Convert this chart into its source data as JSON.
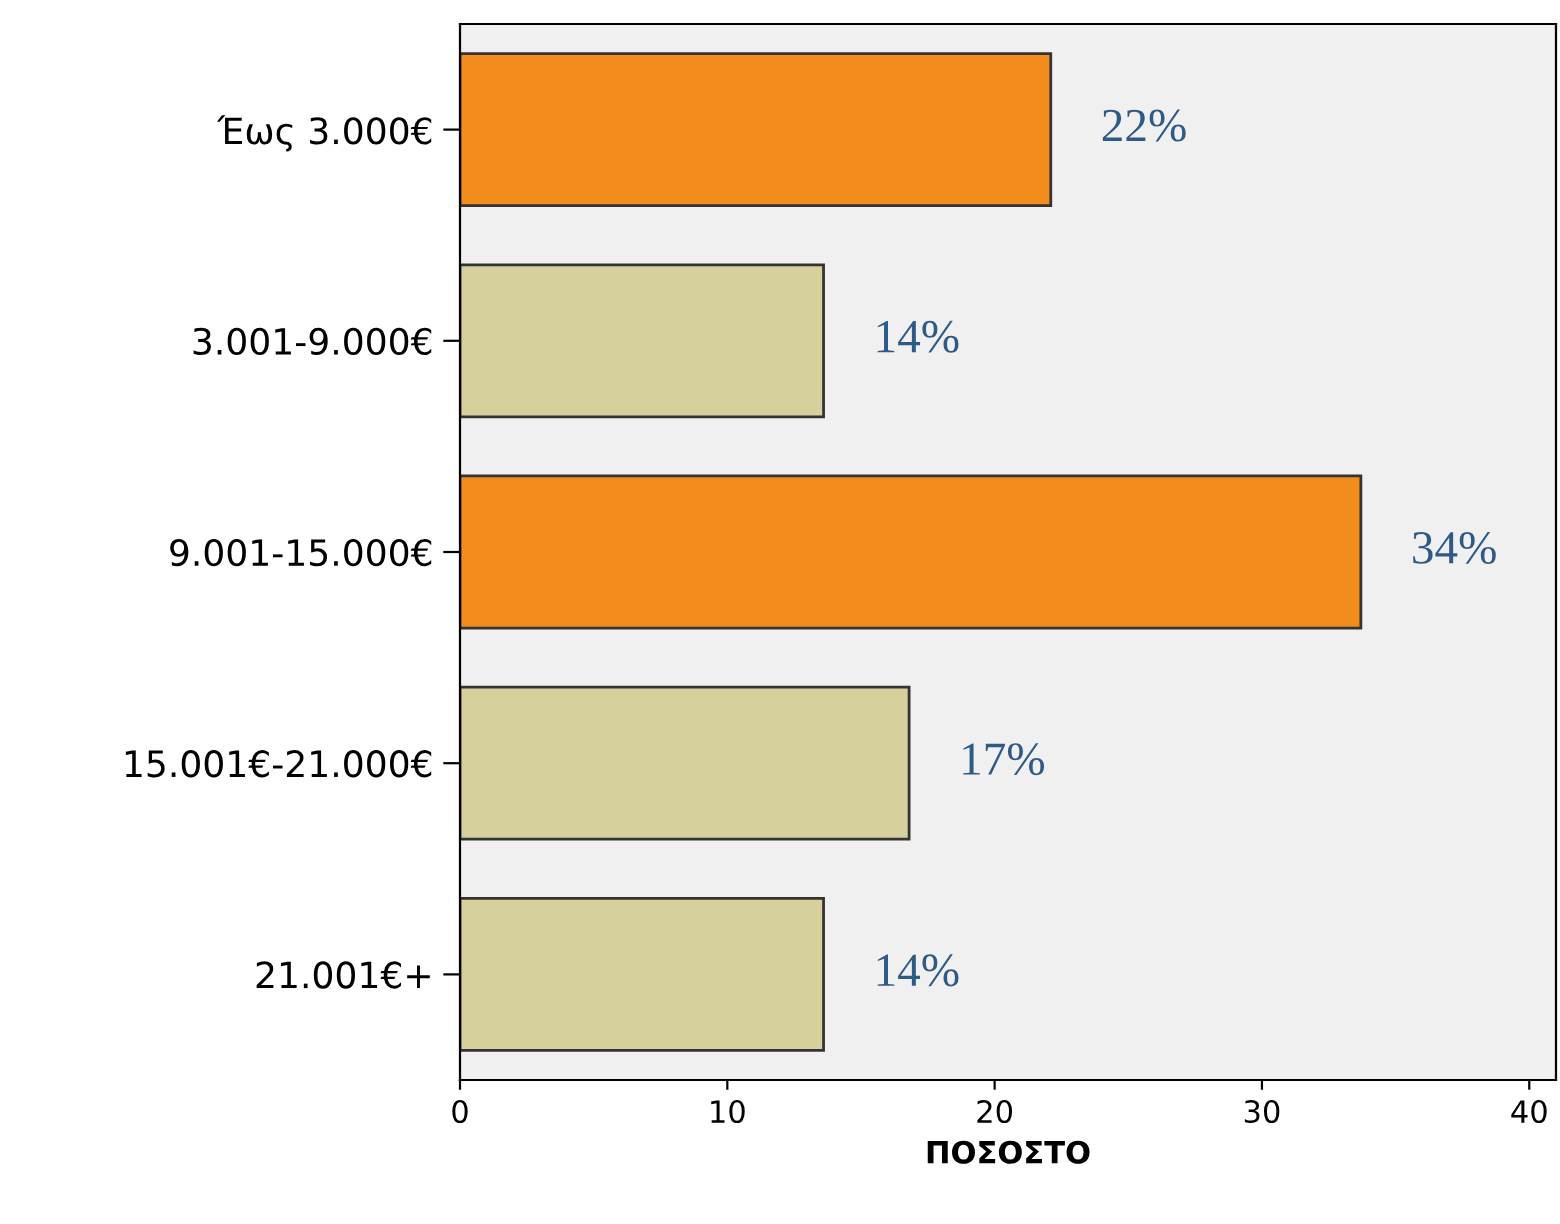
{
  "chart_data": {
    "type": "bar",
    "orientation": "horizontal",
    "xlabel": "ΠΟΣΟΣΤΟ",
    "categories": [
      "Έως 3.000€",
      "3.001-9.000€",
      "9.001-15.000€",
      "15.001€-21.000€",
      "21.001€+"
    ],
    "values": [
      22.1,
      13.6,
      33.7,
      16.8,
      13.6
    ],
    "colors": [
      "#f28c1c",
      "#d6d19c",
      "#f28c1c",
      "#d6d19c",
      "#d6d19c"
    ],
    "value_labels": [
      "22%",
      "14%",
      "34%",
      "17%",
      "14%"
    ],
    "xlim": [
      0,
      41
    ],
    "xticks": [
      0,
      10,
      20,
      30,
      40
    ],
    "grid": false
  }
}
